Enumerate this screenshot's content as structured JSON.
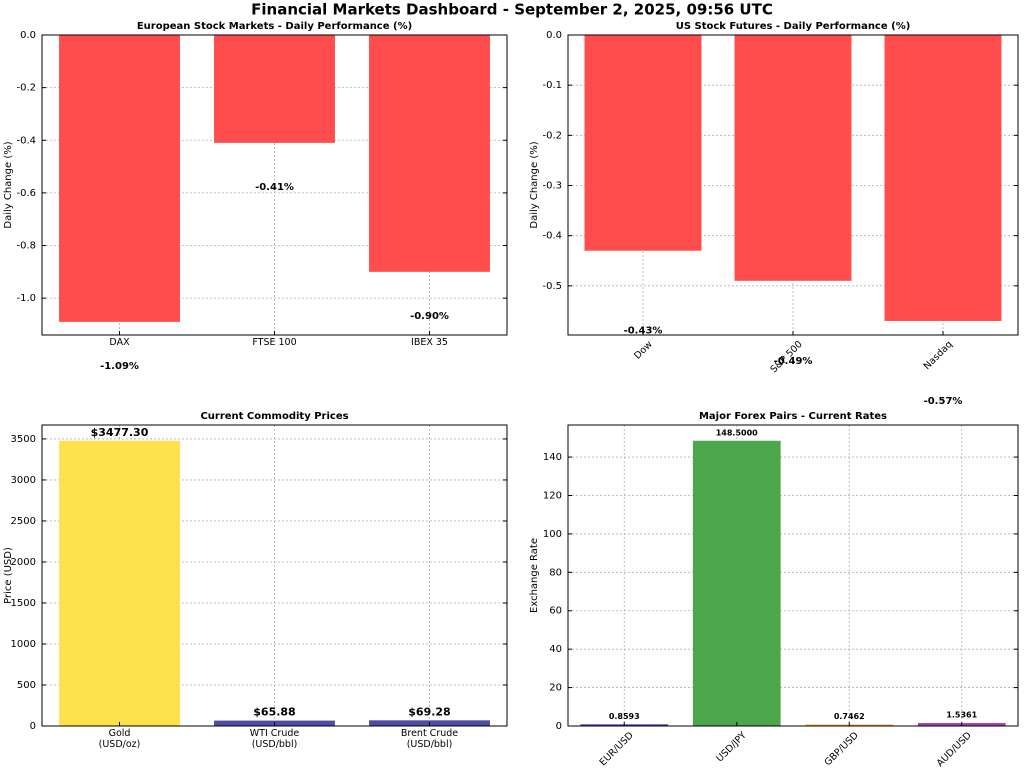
{
  "title": "Financial Markets Dashboard - September 2, 2025, 09:56 UTC",
  "chart_data": [
    {
      "type": "bar",
      "title": "European Stock Markets - Daily Performance (%)",
      "ylabel": "Daily Change (%)",
      "categories": [
        "DAX",
        "FTSE 100",
        "IBEX 35"
      ],
      "values": [
        -1.09,
        -0.41,
        -0.9
      ],
      "value_labels": [
        "-1.09%",
        "-0.41%",
        "-0.90%"
      ],
      "color": "#ff4d4d",
      "ylim": [
        -1.14,
        0
      ],
      "yticks": [
        {
          "value": 0,
          "label": "0.0"
        },
        -0.2,
        -0.4,
        -0.6,
        -0.8,
        {
          "value": -1,
          "label": "-1.0"
        }
      ],
      "grid": true
    },
    {
      "type": "bar",
      "title": "US Stock Futures - Daily Performance (%)",
      "ylabel": "Daily Change (%)",
      "categories": [
        "Dow",
        "S&P 500",
        "Nasdaq"
      ],
      "values": [
        -0.43,
        -0.49,
        -0.57
      ],
      "value_labels": [
        "-0.43%",
        "-0.49%",
        "-0.57%"
      ],
      "color": "#ff4d4d",
      "ylim": [
        -0.598,
        0
      ],
      "yticks": [
        {
          "value": 0,
          "label": "0.0"
        },
        -0.1,
        -0.2,
        -0.3,
        -0.4,
        -0.5
      ],
      "grid": true
    },
    {
      "type": "bar",
      "title": "Current Commodity Prices",
      "ylabel": "Price (USD)",
      "categories": [
        "Gold\n(USD/oz)",
        "WTI Crude\n(USD/bbl)",
        "Brent Crude\n(USD/bbl)"
      ],
      "values": [
        3477.3,
        65.88,
        69.28
      ],
      "value_labels": [
        "$3477.30",
        "$65.88",
        "$69.28"
      ],
      "colors": [
        "#ffe14d",
        "#4d4da6",
        "#4d4da6"
      ],
      "ylim": [
        0,
        3670
      ],
      "yticks": [
        0,
        500,
        1000,
        1500,
        2000,
        2500,
        3000,
        3500
      ],
      "grid": true
    },
    {
      "type": "bar",
      "title": "Major Forex Pairs - Current Rates",
      "ylabel": "Exchange Rate",
      "categories": [
        "EUR/USD",
        "USD/JPY",
        "GBP/USD",
        "AUD/USD"
      ],
      "values": [
        0.8593,
        148.5,
        0.7462,
        1.5361
      ],
      "value_labels": [
        "0.8593",
        "148.5000",
        "0.7462",
        "1.5361"
      ],
      "colors": [
        "#3a3ab8",
        "#4ca64c",
        "#f0a030",
        "#a040b0"
      ],
      "ylim": [
        0,
        156.7
      ],
      "yticks": [
        0,
        20,
        40,
        60,
        80,
        100,
        120,
        140
      ],
      "grid": true
    }
  ]
}
